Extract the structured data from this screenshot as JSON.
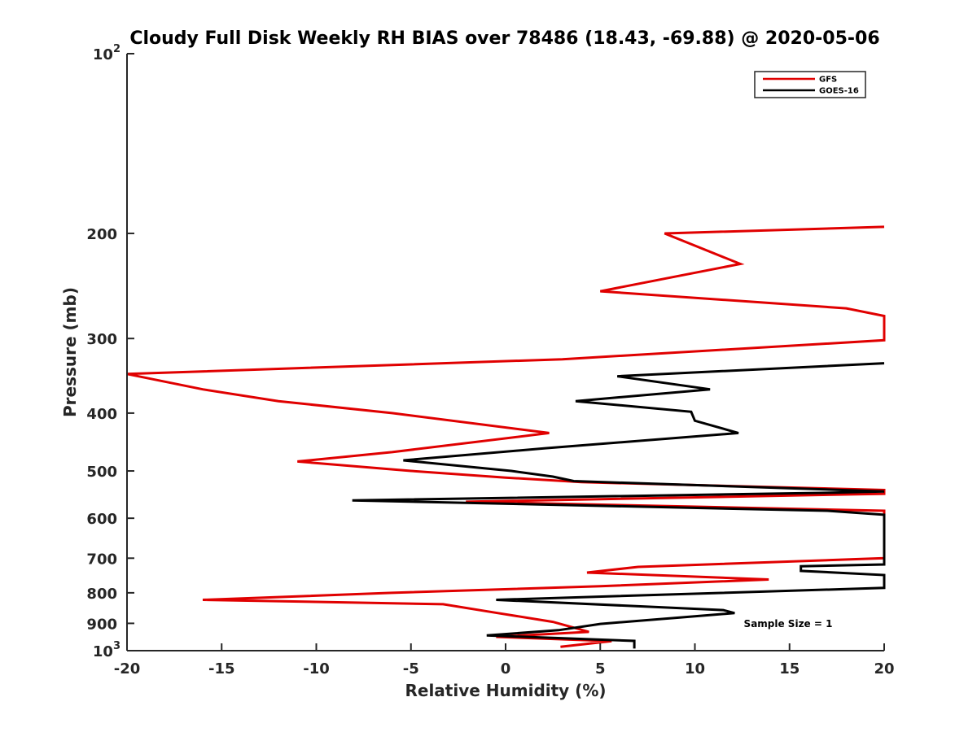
{
  "chart_data": {
    "type": "line",
    "title": "Cloudy Full Disk Weekly RH BIAS over 78486 (18.43, -69.88) @ 2020-05-06",
    "xlabel": "Relative Humidity (%)",
    "ylabel": "Pressure (mb)",
    "xlim": [
      -20,
      20
    ],
    "ylim": [
      100,
      1000
    ],
    "y_scale": "log",
    "y_reversed": true,
    "grid": false,
    "legend_position": "top-right",
    "x_ticks": [
      "-20",
      "-15",
      "-10",
      "-5",
      "0",
      "5",
      "10",
      "15",
      "20"
    ],
    "y_ticks": [
      {
        "value": 200,
        "label": "200"
      },
      {
        "value": 300,
        "label": "300"
      },
      {
        "value": 400,
        "label": "400"
      },
      {
        "value": 500,
        "label": "500"
      },
      {
        "value": 600,
        "label": "600"
      },
      {
        "value": 700,
        "label": "700"
      },
      {
        "value": 800,
        "label": "800"
      },
      {
        "value": 900,
        "label": "900"
      }
    ],
    "y_decade_ticks": [
      {
        "value": 100,
        "base": "10",
        "exp": "2"
      },
      {
        "value": 1000,
        "base": "10",
        "exp": "3"
      }
    ],
    "annotation": "Sample Size = 1",
    "series": [
      {
        "name": "GFS",
        "color": "#e00000",
        "points": [
          [
            20,
            195
          ],
          [
            8.4,
            200
          ],
          [
            12.4,
            225
          ],
          [
            5.0,
            250
          ],
          [
            18.0,
            267
          ],
          [
            20,
            275
          ],
          [
            20,
            302
          ],
          [
            3,
            325
          ],
          [
            -20,
            344
          ],
          [
            -16,
            365
          ],
          [
            -12,
            382
          ],
          [
            -6,
            400
          ],
          [
            2.3,
            432
          ],
          [
            -6,
            465
          ],
          [
            -11,
            482
          ],
          [
            -5,
            500
          ],
          [
            0,
            513
          ],
          [
            4,
            522
          ],
          [
            20,
            538
          ],
          [
            20,
            546
          ],
          [
            -2.1,
            563
          ],
          [
            20,
            583
          ],
          [
            20,
            700
          ],
          [
            7.0,
            724
          ],
          [
            4.3,
            740
          ],
          [
            13.9,
            760
          ],
          [
            5,
            780
          ],
          [
            -6,
            800
          ],
          [
            -16.0,
            822
          ],
          [
            -3.3,
            836
          ],
          [
            -0.4,
            865
          ],
          [
            2.5,
            895
          ],
          [
            3.6,
            915
          ],
          [
            4.4,
            930
          ],
          [
            -0.5,
            948
          ],
          [
            5.6,
            964
          ],
          [
            2.9,
            985
          ]
        ]
      },
      {
        "name": "GOES-16",
        "color": "#000000",
        "points": [
          [
            20,
            330
          ],
          [
            5.9,
            347
          ],
          [
            10.8,
            365
          ],
          [
            3.7,
            382
          ],
          [
            9.8,
            398
          ],
          [
            10.0,
            412
          ],
          [
            12.3,
            432
          ],
          [
            2.1,
            458
          ],
          [
            -5.4,
            480
          ],
          [
            0.3,
            500
          ],
          [
            2.5,
            511
          ],
          [
            3.6,
            520
          ],
          [
            20,
            541
          ],
          [
            17,
            544
          ],
          [
            -8.1,
            560
          ],
          [
            17,
            583
          ],
          [
            20,
            592
          ],
          [
            20,
            717
          ],
          [
            15.6,
            722
          ],
          [
            15.6,
            735
          ],
          [
            20,
            747
          ],
          [
            20,
            785
          ],
          [
            -0.5,
            822
          ],
          [
            11.5,
            855
          ],
          [
            12.1,
            865
          ],
          [
            9,
            881
          ],
          [
            5,
            902
          ],
          [
            2.8,
            924
          ],
          [
            -1.0,
            943
          ],
          [
            6.8,
            963
          ],
          [
            6.8,
            992
          ]
        ]
      }
    ]
  }
}
